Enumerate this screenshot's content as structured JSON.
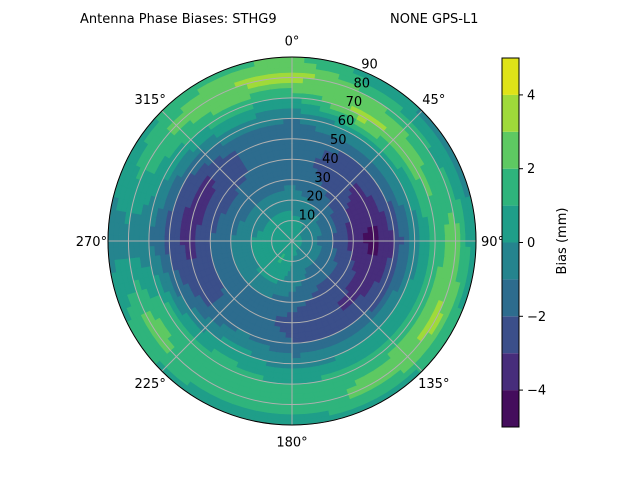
{
  "chart_data": {
    "type": "heatmap",
    "subtype": "polar-filled-contour",
    "title": "Antenna Phase Biases: STHG9",
    "subtitle": "NONE GPS-L1",
    "colorbar_label": "Bias (mm)",
    "colorbar_ticks": [
      "-4",
      "-2",
      "0",
      "2",
      "4"
    ],
    "colorbar_tick_values": [
      -4,
      -2,
      0,
      2,
      4
    ],
    "levels": [
      -5,
      -4,
      -3,
      -2,
      -1,
      0,
      1,
      2,
      3,
      4,
      5
    ],
    "colormap": "viridis",
    "level_colors": [
      "#440d5c",
      "#472d7b",
      "#3b4f8a",
      "#2d6c8e",
      "#25848e",
      "#1f9e89",
      "#2fb47c",
      "#5ec962",
      "#9fda3a",
      "#dfe318"
    ],
    "angle_tick_labels": [
      "0°",
      "45°",
      "90°",
      "135°",
      "180°",
      "225°",
      "270°",
      "315°"
    ],
    "angle_tick_values": [
      0,
      45,
      90,
      135,
      180,
      225,
      270,
      315
    ],
    "radial_tick_labels": [
      "10",
      "20",
      "30",
      "40",
      "50",
      "60",
      "70",
      "80",
      "90"
    ],
    "radial_tick_values": [
      10,
      20,
      30,
      40,
      50,
      60,
      70,
      80,
      90
    ],
    "theta_zero": "N",
    "theta_direction": "clockwise",
    "rlim": [
      0,
      90
    ],
    "grid": true,
    "azimuth_deg": [
      0,
      30,
      60,
      90,
      120,
      150,
      180,
      210,
      240,
      270,
      300,
      330
    ],
    "zenith_deg": [
      0,
      10,
      20,
      30,
      40,
      50,
      60,
      70,
      80,
      90
    ],
    "bias_mm": [
      [
        0.5,
        0.3,
        -0.5,
        -1.2,
        -1.5,
        -1.5,
        -1.0,
        1.0,
        3.5,
        2.0
      ],
      [
        0.5,
        0.0,
        -1.0,
        -2.0,
        -2.5,
        -2.0,
        0.0,
        3.5,
        2.0,
        0.0
      ],
      [
        0.5,
        -0.5,
        -1.5,
        -3.0,
        -3.5,
        -2.0,
        0.0,
        2.5,
        1.0,
        -0.5
      ],
      [
        0.5,
        -0.5,
        -2.0,
        -3.5,
        -4.5,
        -3.0,
        -0.5,
        1.5,
        2.5,
        0.0
      ],
      [
        0.5,
        -0.5,
        -1.5,
        -2.5,
        -3.5,
        -2.5,
        0.0,
        1.5,
        3.5,
        1.0
      ],
      [
        0.5,
        -0.5,
        -1.5,
        -2.5,
        -3.0,
        -2.0,
        0.0,
        1.5,
        2.5,
        0.5
      ],
      [
        0.5,
        0.0,
        -0.5,
        -1.5,
        -2.5,
        -2.0,
        -0.5,
        1.0,
        1.5,
        0.5
      ],
      [
        0.5,
        1.2,
        0.5,
        -1.0,
        -1.5,
        -1.0,
        0.5,
        1.5,
        1.5,
        0.5
      ],
      [
        0.5,
        0.5,
        0.0,
        -1.0,
        -2.0,
        -2.5,
        -1.0,
        1.5,
        2.5,
        1.0
      ],
      [
        0.5,
        0.5,
        0.0,
        -1.0,
        -2.0,
        -3.5,
        -2.5,
        -1.0,
        -0.5,
        -0.5
      ],
      [
        0.5,
        0.5,
        -0.5,
        -1.5,
        -2.5,
        -3.5,
        -2.0,
        0.5,
        1.5,
        0.5
      ],
      [
        0.5,
        0.5,
        -0.5,
        -1.5,
        -2.0,
        -2.0,
        -0.5,
        1.5,
        3.0,
        1.5
      ]
    ]
  }
}
